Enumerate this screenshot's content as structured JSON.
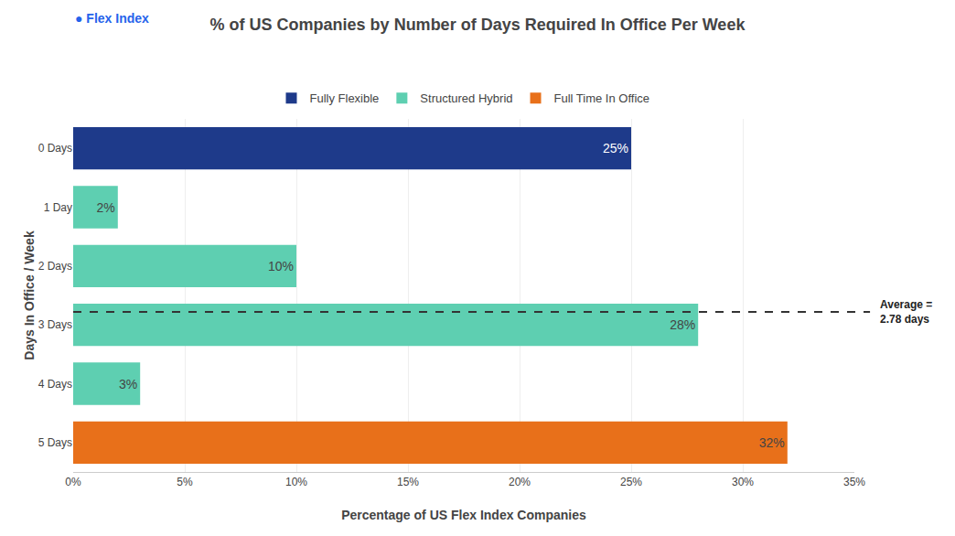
{
  "chart_data": {
    "type": "bar",
    "orientation": "horizontal",
    "title": "% of US Companies by Number of Days Required In Office Per Week",
    "xlabel": "Percentage of US Flex Index Companies",
    "ylabel": "Days In Office / Week",
    "categories": [
      "0 Days",
      "1 Day",
      "2 Days",
      "3 Days",
      "4 Days",
      "5 Days"
    ],
    "series": [
      {
        "name": "Fully Flexible",
        "color": "#1e3a8a",
        "values": [
          25,
          null,
          null,
          null,
          null,
          null
        ],
        "value_labels": [
          "25%",
          null,
          null,
          null,
          null,
          null
        ]
      },
      {
        "name": "Structured Hybrid",
        "color": "#5ecfb1",
        "values": [
          null,
          2,
          10,
          28,
          3,
          null
        ],
        "value_labels": [
          null,
          "2%",
          "10%",
          "28%",
          "3%",
          null
        ]
      },
      {
        "name": "Full Time In Office",
        "color": "#e8701a",
        "values": [
          null,
          null,
          null,
          null,
          null,
          32
        ],
        "value_labels": [
          null,
          null,
          null,
          null,
          null,
          "32%"
        ]
      }
    ],
    "xlim": [
      0,
      35
    ],
    "xticks": [
      {
        "value": 0,
        "label": "0%"
      },
      {
        "value": 5,
        "label": "5%"
      },
      {
        "value": 10,
        "label": "10%"
      },
      {
        "value": 15,
        "label": "15%"
      },
      {
        "value": 20,
        "label": "20%"
      },
      {
        "value": 25,
        "label": "25%"
      },
      {
        "value": 30,
        "label": "30%"
      },
      {
        "value": 35,
        "label": "35%"
      }
    ],
    "grid": true,
    "legend": "top",
    "data_labels": true,
    "annotations": [
      {
        "text": "Average =\n2.78 days",
        "value": 2.78,
        "line_style": "dashed"
      },
      {
        "text": "● Flex Index",
        "color": "#2563eb"
      }
    ]
  }
}
